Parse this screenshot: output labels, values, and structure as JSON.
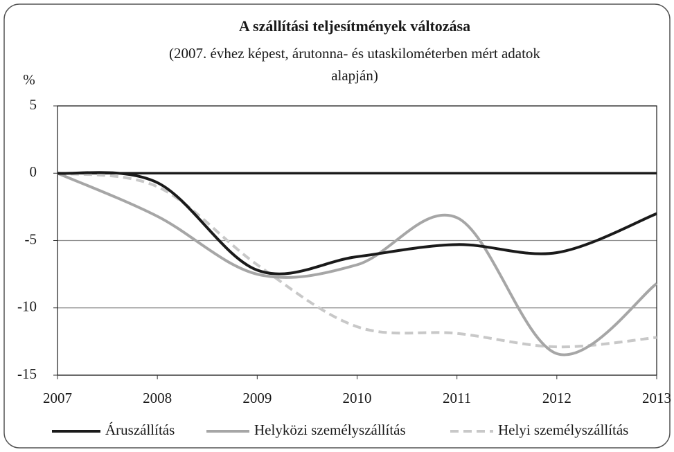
{
  "chart_data": {
    "type": "line",
    "title": "A szállítási teljesítmények változása",
    "subtitle": [
      "(2007. évhez képest, árutonna- és utaskilométerben mért adatok",
      "alapján)"
    ],
    "ylabel": "%",
    "x": [
      2007,
      2008,
      2009,
      2010,
      2011,
      2012,
      2013
    ],
    "xlim": [
      2007,
      2013
    ],
    "xticks": [
      2007,
      2008,
      2009,
      2010,
      2011,
      2012,
      2013
    ],
    "ylim": [
      -15,
      5
    ],
    "yticks": [
      5,
      0,
      -5,
      -10,
      -15
    ],
    "grid": true,
    "series": [
      {
        "name": "Áruszállítás",
        "color": "#1a1a1a",
        "dash": false,
        "values": [
          0,
          -0.7,
          -7.2,
          -6.2,
          -5.3,
          -5.9,
          -3.0
        ]
      },
      {
        "name": "Helyközi személyszállítás",
        "color": "#a6a6a6",
        "dash": false,
        "values": [
          0,
          -3.2,
          -7.5,
          -6.8,
          -3.3,
          -13.4,
          -8.2
        ]
      },
      {
        "name": "Helyi személyszállítás",
        "color": "#c8c8c8",
        "dash": true,
        "values": [
          0,
          -1.0,
          -6.8,
          -11.4,
          -11.9,
          -12.9,
          -12.2
        ]
      }
    ],
    "legend": "bottom"
  }
}
